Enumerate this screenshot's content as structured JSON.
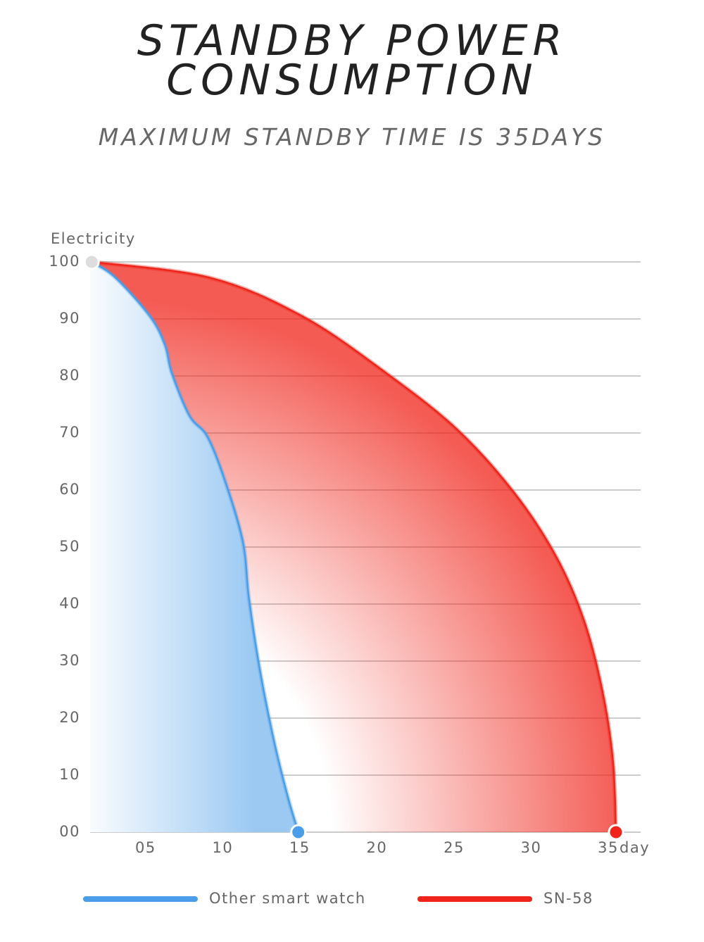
{
  "chart_data": {
    "type": "line",
    "title": "STANDBY POWER CONSUMPTION",
    "subtitle": "MAXIMUM STANDBY TIME IS 35DAYS",
    "y_label": "Electricity",
    "x_label": "day",
    "xlim": [
      1.4,
      37.1
    ],
    "ylim": [
      0,
      100
    ],
    "xticks": [
      {
        "value": 5,
        "label": "05"
      },
      10,
      15,
      20,
      25,
      30,
      35
    ],
    "yticks": [
      {
        "value": 0,
        "label": "00"
      },
      10,
      20,
      30,
      40,
      50,
      60,
      70,
      80,
      90,
      100
    ],
    "grid": true,
    "series": [
      {
        "name": "Other smart watch",
        "color": "#4a9de8",
        "x": [
          1.5,
          3.06,
          5.3,
          6.26,
          6.7,
          7.85,
          9,
          10.1,
          11.3,
          11.7,
          12.4,
          13.3,
          14.2,
          14.9
        ],
        "values": [
          100,
          97.2,
          90.4,
          85.4,
          80.5,
          73,
          69.4,
          62,
          51,
          41,
          28.6,
          16.3,
          6.4,
          0
        ]
      },
      {
        "name": "SN-58",
        "color": "#f0241a",
        "x": [
          1.5,
          9.2,
          15.2,
          20.6,
          25.2,
          28.9,
          31.6,
          33.4,
          34.6,
          35.3,
          35.5
        ],
        "values": [
          100,
          97.2,
          90.4,
          80.5,
          70.6,
          59.5,
          48.4,
          37.3,
          25,
          12.6,
          0
        ]
      }
    ]
  }
}
